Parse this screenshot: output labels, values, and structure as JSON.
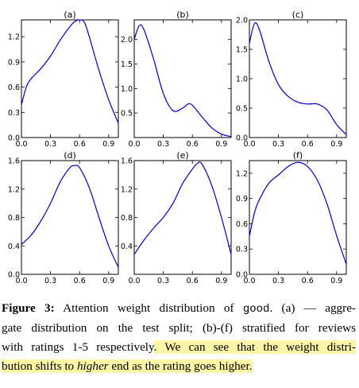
{
  "chart_data": [
    {
      "type": "line",
      "title": "(a)",
      "xticks": [
        "0.0",
        "0.3",
        "0.6",
        "0.9"
      ],
      "yticks": [
        "0.0",
        "0.3",
        "0.6",
        "0.9",
        "1.2"
      ],
      "xlim": [
        0,
        1
      ],
      "ylim": [
        0,
        1.4
      ],
      "x": [
        0,
        0.05,
        0.1,
        0.2,
        0.3,
        0.4,
        0.5,
        0.55,
        0.6,
        0.65,
        0.7,
        0.8,
        0.9,
        1.0
      ],
      "y": [
        0.39,
        0.6,
        0.7,
        0.82,
        0.97,
        1.16,
        1.32,
        1.38,
        1.4,
        1.37,
        1.2,
        0.8,
        0.45,
        0.17
      ]
    },
    {
      "type": "line",
      "title": "(b)",
      "xticks": [
        "0.0",
        "0.3",
        "0.6",
        "0.9"
      ],
      "yticks": [
        "0.5",
        "1.0",
        "1.5",
        "2.0"
      ],
      "xlim": [
        0,
        1
      ],
      "ylim": [
        0,
        2.4
      ],
      "x": [
        0,
        0.05,
        0.1,
        0.2,
        0.3,
        0.4,
        0.5,
        0.55,
        0.6,
        0.7,
        0.8,
        0.9,
        1.0
      ],
      "y": [
        2.0,
        2.28,
        2.2,
        1.6,
        0.9,
        0.55,
        0.6,
        0.68,
        0.66,
        0.42,
        0.2,
        0.07,
        0.02
      ]
    },
    {
      "type": "line",
      "title": "(c)",
      "xticks": [
        "0.0",
        "0.3",
        "0.6",
        "0.9"
      ],
      "yticks": [
        "0.0",
        "0.5",
        "1.0",
        "1.5",
        "2.0"
      ],
      "xlim": [
        0,
        1
      ],
      "ylim": [
        0,
        2.0
      ],
      "x": [
        0,
        0.05,
        0.1,
        0.2,
        0.3,
        0.4,
        0.5,
        0.6,
        0.7,
        0.8,
        0.9,
        1.0
      ],
      "y": [
        1.6,
        1.93,
        1.85,
        1.3,
        0.9,
        0.7,
        0.6,
        0.57,
        0.57,
        0.47,
        0.22,
        0.05
      ]
    },
    {
      "type": "line",
      "title": "(d)",
      "xticks": [
        "0.0",
        "0.3",
        "0.6",
        "0.9"
      ],
      "yticks": [
        "0.0",
        "0.4",
        "0.8",
        "1.2",
        "1.6"
      ],
      "xlim": [
        0,
        1
      ],
      "ylim": [
        0,
        1.6
      ],
      "x": [
        0,
        0.1,
        0.2,
        0.3,
        0.4,
        0.5,
        0.55,
        0.6,
        0.7,
        0.8,
        0.9,
        1.0
      ],
      "y": [
        0.42,
        0.55,
        0.75,
        1.0,
        1.3,
        1.5,
        1.53,
        1.5,
        1.22,
        0.8,
        0.4,
        0.1
      ]
    },
    {
      "type": "line",
      "title": "(e)",
      "xticks": [
        "0.0",
        "0.3",
        "0.6",
        "0.9"
      ],
      "yticks": [
        "0.4",
        "0.8",
        "1.2",
        "1.6"
      ],
      "xlim": [
        0,
        1
      ],
      "ylim": [
        0,
        1.6
      ],
      "x": [
        0,
        0.1,
        0.2,
        0.3,
        0.4,
        0.5,
        0.6,
        0.65,
        0.7,
        0.8,
        0.9,
        1.0
      ],
      "y": [
        0.28,
        0.48,
        0.65,
        0.8,
        1.0,
        1.28,
        1.48,
        1.56,
        1.55,
        1.25,
        0.8,
        0.28
      ]
    },
    {
      "type": "line",
      "title": "(f)",
      "xticks": [
        "0.0",
        "0.3",
        "0.6",
        "0.9"
      ],
      "yticks": [
        "0.0",
        "0.3",
        "0.6",
        "0.9",
        "1.2"
      ],
      "xlim": [
        0,
        1
      ],
      "ylim": [
        0,
        1.35
      ],
      "x": [
        0,
        0.05,
        0.1,
        0.2,
        0.3,
        0.4,
        0.5,
        0.6,
        0.7,
        0.8,
        0.9,
        1.0
      ],
      "y": [
        0.45,
        0.72,
        0.88,
        1.08,
        1.18,
        1.28,
        1.33,
        1.28,
        1.12,
        0.84,
        0.46,
        0.12
      ]
    }
  ],
  "caption": {
    "label": "Figure 3:",
    "l1_a": " Attention weight distribution of ",
    "l1_code": "good",
    "l1_b": ". (a) — aggre-",
    "l2": "gate distribution on the test split; (b)-(f) stratified for reviews",
    "l3_a": "with ratings 1-5 respectively",
    "l3_b": ". We can see that the weight distri-",
    "l4_a": "bution shifts to ",
    "l4_em": "higher",
    "l4_b": " end as the rating goes higher."
  },
  "colors": {
    "curve": "#0000cc",
    "highlight": "#fdf6a6"
  }
}
